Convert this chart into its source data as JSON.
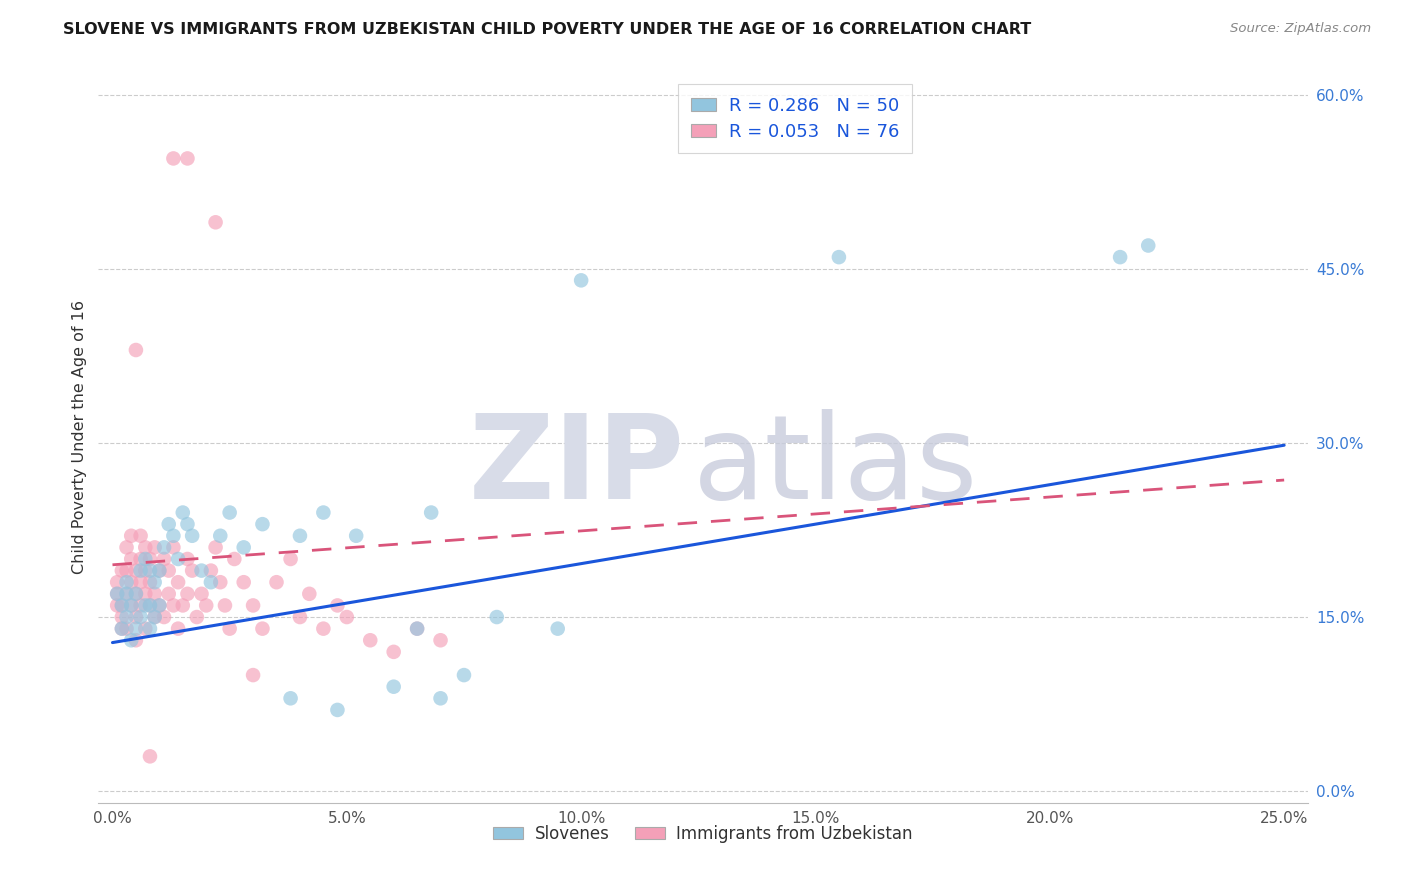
{
  "title": "SLOVENE VS IMMIGRANTS FROM UZBEKISTAN CHILD POVERTY UNDER THE AGE OF 16 CORRELATION CHART",
  "source": "Source: ZipAtlas.com",
  "ylabel": "Child Poverty Under the Age of 16",
  "xlabel_ticks": [
    "0.0%",
    "5.0%",
    "10.0%",
    "15.0%",
    "20.0%",
    "25.0%"
  ],
  "xlabel_vals": [
    0.0,
    0.05,
    0.1,
    0.15,
    0.2,
    0.25
  ],
  "ylabel_ticks": [
    "0.0%",
    "15.0%",
    "30.0%",
    "45.0%",
    "60.0%"
  ],
  "ylabel_vals": [
    0.0,
    0.15,
    0.3,
    0.45,
    0.6
  ],
  "xlim": [
    -0.003,
    0.255
  ],
  "ylim": [
    -0.01,
    0.62
  ],
  "legend1_label": "R = 0.286   N = 50",
  "legend2_label": "R = 0.053   N = 76",
  "legend_group1": "Slovenes",
  "legend_group2": "Immigrants from Uzbekistan",
  "color_blue": "#92c5de",
  "color_pink": "#f4a0b8",
  "line_blue": "#1a56db",
  "line_pink": "#d9547a",
  "blue_line_x0": 0.0,
  "blue_line_y0": 0.128,
  "blue_line_x1": 0.25,
  "blue_line_y1": 0.298,
  "pink_line_x0": 0.0,
  "pink_line_y0": 0.195,
  "pink_line_x1": 0.25,
  "pink_line_y1": 0.268,
  "blue_x": [
    0.001,
    0.002,
    0.002,
    0.003,
    0.003,
    0.003,
    0.004,
    0.004,
    0.005,
    0.005,
    0.006,
    0.006,
    0.007,
    0.007,
    0.008,
    0.008,
    0.008,
    0.009,
    0.009,
    0.01,
    0.01,
    0.011,
    0.012,
    0.013,
    0.014,
    0.015,
    0.016,
    0.017,
    0.019,
    0.021,
    0.023,
    0.025,
    0.028,
    0.032,
    0.038,
    0.04,
    0.045,
    0.048,
    0.052,
    0.06,
    0.065,
    0.068,
    0.07,
    0.075,
    0.082,
    0.095,
    0.1,
    0.155,
    0.215,
    0.221
  ],
  "blue_y": [
    0.17,
    0.14,
    0.16,
    0.15,
    0.17,
    0.18,
    0.13,
    0.16,
    0.14,
    0.17,
    0.15,
    0.19,
    0.16,
    0.2,
    0.14,
    0.16,
    0.19,
    0.15,
    0.18,
    0.16,
    0.19,
    0.21,
    0.23,
    0.22,
    0.2,
    0.24,
    0.23,
    0.22,
    0.19,
    0.18,
    0.22,
    0.24,
    0.21,
    0.23,
    0.08,
    0.22,
    0.24,
    0.07,
    0.22,
    0.09,
    0.14,
    0.24,
    0.08,
    0.1,
    0.15,
    0.14,
    0.44,
    0.46,
    0.46,
    0.47
  ],
  "pink_x": [
    0.001,
    0.001,
    0.001,
    0.002,
    0.002,
    0.002,
    0.002,
    0.003,
    0.003,
    0.003,
    0.003,
    0.004,
    0.004,
    0.004,
    0.004,
    0.005,
    0.005,
    0.005,
    0.005,
    0.006,
    0.006,
    0.006,
    0.006,
    0.007,
    0.007,
    0.007,
    0.007,
    0.008,
    0.008,
    0.008,
    0.009,
    0.009,
    0.009,
    0.01,
    0.01,
    0.011,
    0.011,
    0.012,
    0.012,
    0.013,
    0.013,
    0.014,
    0.014,
    0.015,
    0.016,
    0.016,
    0.017,
    0.018,
    0.019,
    0.02,
    0.021,
    0.022,
    0.023,
    0.024,
    0.025,
    0.026,
    0.028,
    0.03,
    0.032,
    0.035,
    0.038,
    0.04,
    0.042,
    0.045,
    0.048,
    0.05,
    0.055,
    0.06,
    0.065,
    0.07,
    0.013,
    0.016,
    0.022,
    0.005,
    0.008,
    0.03
  ],
  "pink_y": [
    0.16,
    0.18,
    0.17,
    0.15,
    0.19,
    0.16,
    0.14,
    0.17,
    0.21,
    0.19,
    0.14,
    0.18,
    0.16,
    0.2,
    0.22,
    0.15,
    0.17,
    0.19,
    0.13,
    0.16,
    0.18,
    0.2,
    0.22,
    0.17,
    0.19,
    0.21,
    0.14,
    0.16,
    0.18,
    0.2,
    0.15,
    0.17,
    0.21,
    0.16,
    0.19,
    0.15,
    0.2,
    0.17,
    0.19,
    0.16,
    0.21,
    0.18,
    0.14,
    0.16,
    0.2,
    0.17,
    0.19,
    0.15,
    0.17,
    0.16,
    0.19,
    0.21,
    0.18,
    0.16,
    0.14,
    0.2,
    0.18,
    0.16,
    0.14,
    0.18,
    0.2,
    0.15,
    0.17,
    0.14,
    0.16,
    0.15,
    0.13,
    0.12,
    0.14,
    0.13,
    0.545,
    0.545,
    0.49,
    0.38,
    0.03,
    0.1
  ]
}
